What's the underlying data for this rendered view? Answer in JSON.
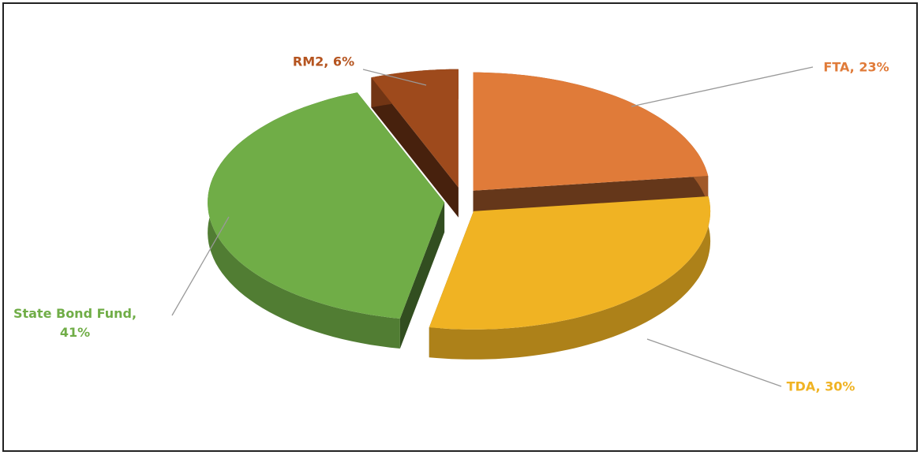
{
  "chart_data": {
    "type": "pie3d",
    "values": [
      23,
      30,
      41,
      6
    ],
    "value_labels": [
      "FTA, 23%",
      "TDA, 30%",
      "State Bond Fund, 41%",
      "RM2, 6%"
    ],
    "colors": [
      "#e07b39",
      "#f0b323",
      "#70ad47",
      "#9e4a1c"
    ],
    "label_colors": [
      "#e07b39",
      "#f0b323",
      "#70ad47",
      "#b5541f"
    ]
  }
}
